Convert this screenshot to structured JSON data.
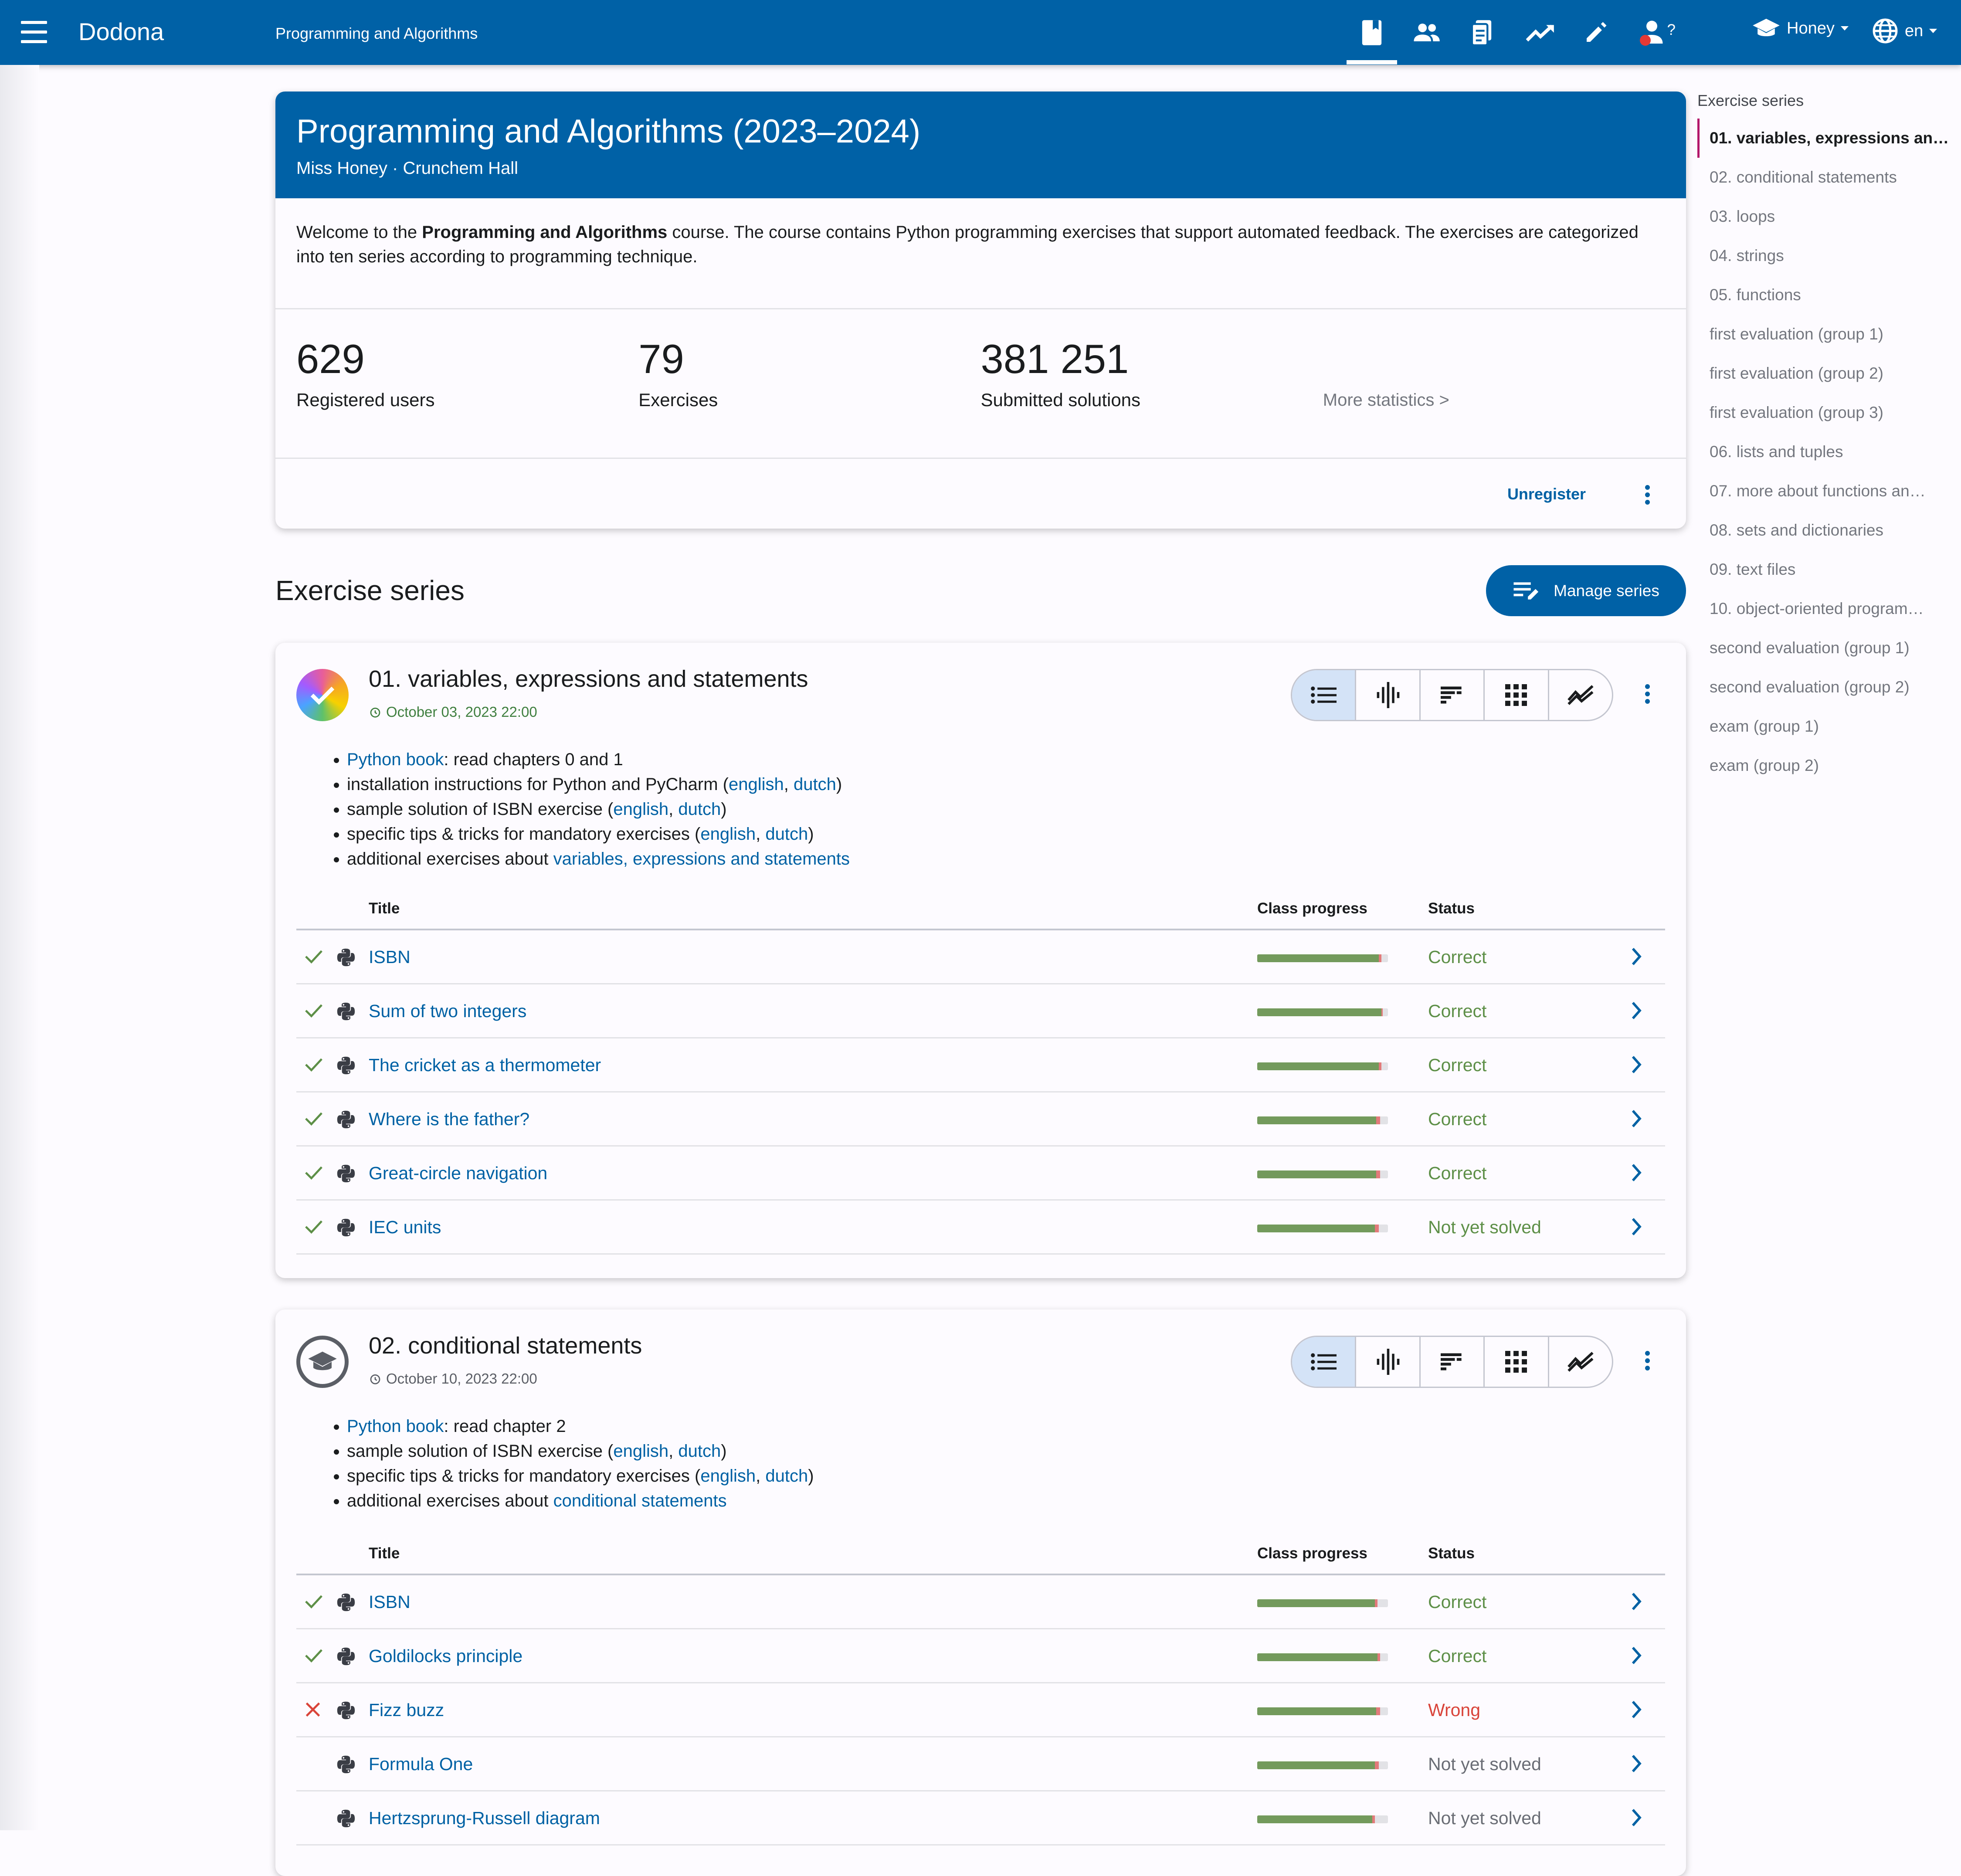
{
  "topbar": {
    "brand": "Dodona",
    "course_name": "Programming and Algorithms",
    "user": "Honey",
    "language": "en",
    "nav_icons": [
      "book-icon",
      "people-icon",
      "document-icon",
      "trending-icon",
      "pencil-icon",
      "question-person-icon"
    ]
  },
  "course": {
    "title": "Programming and Algorithms (2023–2024)",
    "subtitle": "Miss Honey · Crunchem Hall",
    "description_prefix": "Welcome to the ",
    "description_bold": "Programming and Algorithms",
    "description_suffix": " course. The course contains Python programming exercises that support automated feedback. The exercises are categorized into ten series according to programming technique.",
    "stats": [
      {
        "value": "629",
        "label": "Registered users"
      },
      {
        "value": "79",
        "label": "Exercises"
      },
      {
        "value": "381 251",
        "label": "Submitted solutions"
      }
    ],
    "more_statistics": "More statistics >",
    "unregister": "Unregister"
  },
  "section": {
    "title": "Exercise series",
    "manage_button": "Manage series"
  },
  "table_headers": {
    "title": "Title",
    "progress": "Class progress",
    "status": "Status"
  },
  "series": [
    {
      "title": "01. variables, expressions and statements",
      "deadline": "October 03, 2023 22:00",
      "desc": [
        {
          "link": "Python book",
          "text": ": read chapters 0 and 1"
        },
        {
          "text": "installation instructions for Python and PyCharm (",
          "l1": "english",
          "l2": "dutch",
          "end": ")"
        },
        {
          "text": "sample solution of ISBN exercise (",
          "l1": "english",
          "l2": "dutch",
          "end": ")"
        },
        {
          "text": "specific tips & tricks for mandatory exercises (",
          "l1": "english",
          "l2": "dutch",
          "end": ")"
        },
        {
          "text": "additional exercises about ",
          "link_end": "variables, expressions and statements"
        }
      ],
      "exercises": [
        {
          "title": "ISBN",
          "status": "Correct",
          "progress_correct": 0.93,
          "progress_wrong": 0.02
        },
        {
          "title": "Sum of two integers",
          "status": "Correct",
          "progress_correct": 0.95,
          "progress_wrong": 0.01
        },
        {
          "title": "The cricket as a thermometer",
          "status": "Correct",
          "progress_correct": 0.93,
          "progress_wrong": 0.02
        },
        {
          "title": "Where is the father?",
          "status": "Correct",
          "progress_correct": 0.91,
          "progress_wrong": 0.03
        },
        {
          "title": "Great-circle navigation",
          "status": "Correct",
          "progress_correct": 0.91,
          "progress_wrong": 0.03
        },
        {
          "title": "IEC units",
          "status": "Not yet solved",
          "progress_correct": 0.9,
          "progress_wrong": 0.03
        }
      ]
    },
    {
      "title": "02. conditional statements",
      "deadline": "October 10, 2023 22:00",
      "desc": [
        {
          "link": "Python book",
          "text": ": read chapter 2"
        },
        {
          "text": "sample solution of ISBN exercise (",
          "l1": "english",
          "l2": "dutch",
          "end": ")"
        },
        {
          "text": "specific tips & tricks for mandatory exercises (",
          "l1": "english",
          "l2": "dutch",
          "end": ")"
        },
        {
          "text": "additional exercises about ",
          "link_end": "conditional statements"
        }
      ],
      "exercises": [
        {
          "title": "ISBN",
          "status": "Correct",
          "progress_correct": 0.9,
          "progress_wrong": 0.02
        },
        {
          "title": "Goldilocks principle",
          "status": "Correct",
          "progress_correct": 0.92,
          "progress_wrong": 0.02
        },
        {
          "title": "Fizz buzz",
          "status": "Wrong",
          "progress_correct": 0.91,
          "progress_wrong": 0.03
        },
        {
          "title": "Formula One",
          "status": "Not yet solved",
          "progress_correct": 0.9,
          "progress_wrong": 0.03
        },
        {
          "title": "Hertzsprung-Russell diagram",
          "status": "Not yet solved",
          "progress_correct": 0.88,
          "progress_wrong": 0.02
        }
      ]
    }
  ],
  "toc": {
    "heading": "Exercise series",
    "items": [
      "01. variables, expressions an…",
      "02. conditional statements",
      "03. loops",
      "04. strings",
      "05. functions",
      "first evaluation (group 1)",
      "first evaluation (group 2)",
      "first evaluation (group 3)",
      "06. lists and tuples",
      "07. more about functions an…",
      "08. sets and dictionaries",
      "09. text files",
      "10. object-oriented program…",
      "second evaluation (group 1)",
      "second evaluation (group 2)",
      "exam (group 1)",
      "exam (group 2)"
    ]
  },
  "colors": {
    "primary": "#0061a6",
    "correct": "#5d8f47",
    "wrong": "#d9443a",
    "toc_active": "#b3166b"
  }
}
